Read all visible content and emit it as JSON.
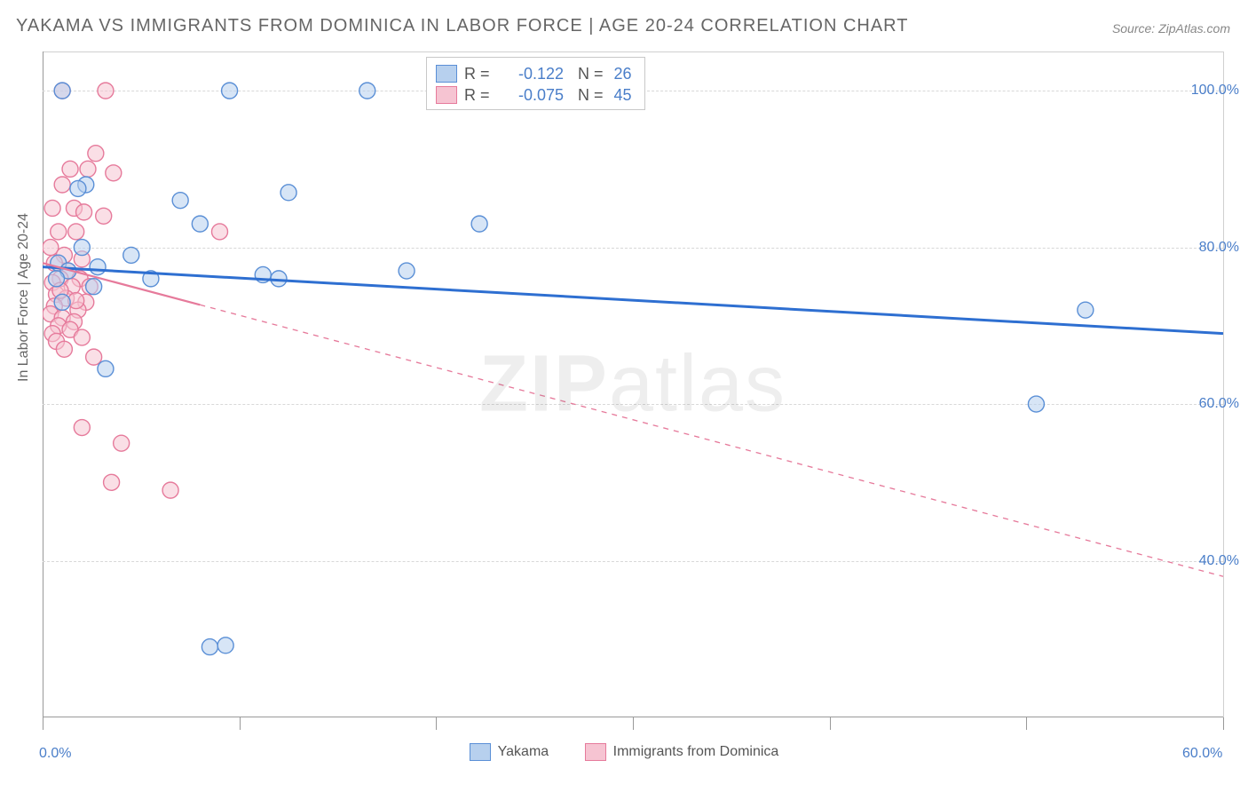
{
  "title": "YAKAMA VS IMMIGRANTS FROM DOMINICA IN LABOR FORCE | AGE 20-24 CORRELATION CHART",
  "source": "Source: ZipAtlas.com",
  "y_axis_title": "In Labor Force | Age 20-24",
  "watermark_a": "ZIP",
  "watermark_b": "atlas",
  "chart": {
    "type": "scatter-with-regression",
    "x_range": [
      0,
      60
    ],
    "y_range": [
      20,
      105
    ],
    "x_labels": [
      {
        "v": 0,
        "text": "0.0%"
      },
      {
        "v": 60,
        "text": "60.0%"
      }
    ],
    "x_ticks": [
      0,
      10,
      20,
      30,
      40,
      50,
      60
    ],
    "y_labels": [
      {
        "v": 40,
        "text": "40.0%"
      },
      {
        "v": 60,
        "text": "60.0%"
      },
      {
        "v": 80,
        "text": "80.0%"
      },
      {
        "v": 100,
        "text": "100.0%"
      }
    ],
    "background": "#ffffff",
    "grid_color": "#d8d8d8",
    "axis_color": "#999999",
    "marker_radius": 9,
    "marker_opacity": 0.55,
    "series": [
      {
        "name": "Yakama",
        "color_fill": "#b7d0ee",
        "color_stroke": "#5a8fd6",
        "reg_color": "#2e6fd1",
        "reg_width": 3,
        "reg_dash": "none",
        "reg_from": [
          0,
          77.5
        ],
        "reg_to": [
          60,
          69.0
        ],
        "reg_solid_limit_x": 60,
        "R": "-0.122",
        "N": "26",
        "points": [
          [
            9.5,
            100
          ],
          [
            16.5,
            100
          ],
          [
            1.0,
            100
          ],
          [
            2.0,
            80
          ],
          [
            4.5,
            79
          ],
          [
            2.2,
            88
          ],
          [
            0.8,
            78
          ],
          [
            7.0,
            86
          ],
          [
            12.5,
            87
          ],
          [
            22.2,
            83
          ],
          [
            8.0,
            83
          ],
          [
            1.3,
            77
          ],
          [
            5.5,
            76
          ],
          [
            11.2,
            76.5
          ],
          [
            18.5,
            77
          ],
          [
            12.0,
            76
          ],
          [
            3.2,
            64.5
          ],
          [
            53.0,
            72
          ],
          [
            50.5,
            60
          ],
          [
            8.5,
            29
          ],
          [
            9.3,
            29.2
          ],
          [
            1.8,
            87.5
          ],
          [
            0.7,
            76
          ],
          [
            2.6,
            75
          ],
          [
            1.0,
            73
          ],
          [
            2.8,
            77.5
          ]
        ]
      },
      {
        "name": "Immigrants from Dominica",
        "color_fill": "#f6c4d2",
        "color_stroke": "#e67a9b",
        "reg_color": "#e67a9b",
        "reg_width": 2.2,
        "reg_dash": "6,6",
        "reg_from": [
          0,
          78.0
        ],
        "reg_to": [
          60,
          38.0
        ],
        "reg_solid_limit_x": 8,
        "R": "-0.075",
        "N": "45",
        "points": [
          [
            3.2,
            100
          ],
          [
            1.0,
            100
          ],
          [
            2.7,
            92
          ],
          [
            1.4,
            90
          ],
          [
            2.3,
            90
          ],
          [
            3.6,
            89.5
          ],
          [
            1.0,
            88
          ],
          [
            0.5,
            85
          ],
          [
            1.6,
            85
          ],
          [
            2.1,
            84.5
          ],
          [
            3.1,
            84.0
          ],
          [
            0.8,
            82
          ],
          [
            1.7,
            82
          ],
          [
            9.0,
            82
          ],
          [
            0.4,
            80
          ],
          [
            1.1,
            79
          ],
          [
            2.0,
            78.5
          ],
          [
            0.6,
            78
          ],
          [
            1.3,
            77
          ],
          [
            0.9,
            76
          ],
          [
            1.9,
            76
          ],
          [
            0.5,
            75.5
          ],
          [
            1.5,
            75
          ],
          [
            2.4,
            75
          ],
          [
            0.7,
            74
          ],
          [
            1.2,
            73.5
          ],
          [
            2.2,
            73
          ],
          [
            0.6,
            72.5
          ],
          [
            1.8,
            72
          ],
          [
            0.4,
            71.5
          ],
          [
            1.0,
            71
          ],
          [
            1.6,
            70.5
          ],
          [
            0.8,
            70
          ],
          [
            1.4,
            69.5
          ],
          [
            0.5,
            69
          ],
          [
            2.0,
            68.5
          ],
          [
            0.7,
            68
          ],
          [
            1.1,
            67
          ],
          [
            2.6,
            66
          ],
          [
            2.0,
            57
          ],
          [
            4.0,
            55
          ],
          [
            3.5,
            50
          ],
          [
            6.5,
            49
          ],
          [
            0.9,
            74.5
          ],
          [
            1.7,
            73.2
          ]
        ]
      }
    ]
  },
  "legend_top": {
    "R_label": "R =",
    "N_label": "N ="
  },
  "legend_bottom": [
    {
      "swatch": "blue",
      "label": "Yakama"
    },
    {
      "swatch": "pink",
      "label": "Immigrants from Dominica"
    }
  ]
}
